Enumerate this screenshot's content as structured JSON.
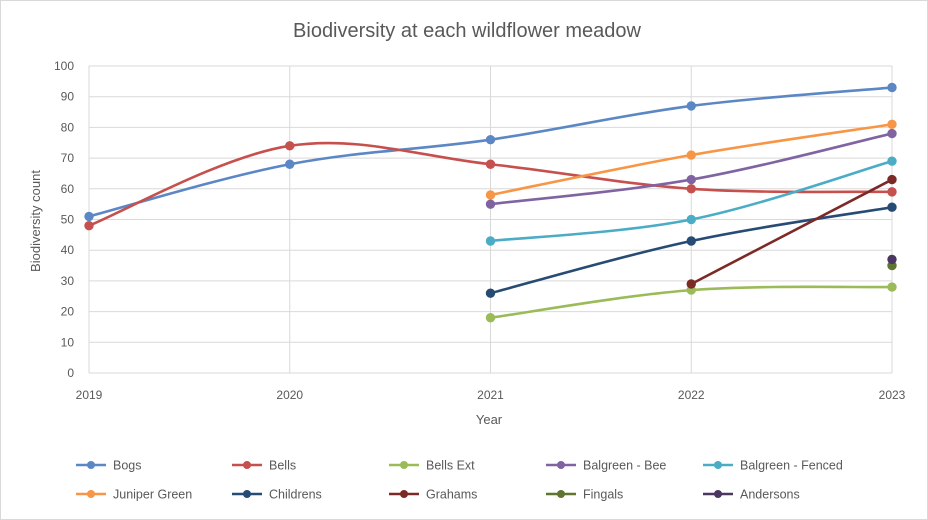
{
  "chart_data": {
    "type": "line",
    "title": "Biodiversity at each wildflower meadow",
    "xlabel": "Year",
    "ylabel": "Biodiversity count",
    "x": [
      2019,
      2020,
      2021,
      2022,
      2023
    ],
    "x_tick_labels": [
      "2019",
      "2020",
      "2021",
      "2022",
      "2023"
    ],
    "ylim": [
      0,
      100
    ],
    "y_ticks": [
      0,
      10,
      20,
      30,
      40,
      50,
      60,
      70,
      80,
      90,
      100
    ],
    "grid": true,
    "smooth": true,
    "legend_position": "bottom",
    "series": [
      {
        "name": "Bogs",
        "color": "#5B87C5",
        "values": [
          51,
          68,
          76,
          87,
          93
        ]
      },
      {
        "name": "Bells",
        "color": "#C5504D",
        "values": [
          48,
          74,
          68,
          60,
          59
        ]
      },
      {
        "name": "Bells Ext",
        "color": "#9BBB59",
        "values": [
          null,
          null,
          18,
          27,
          28
        ]
      },
      {
        "name": "Balgreen - Bee",
        "color": "#8064A2",
        "values": [
          null,
          null,
          55,
          63,
          78
        ]
      },
      {
        "name": "Balgreen - Fenced",
        "color": "#4BACC6",
        "values": [
          null,
          null,
          43,
          50,
          69
        ]
      },
      {
        "name": "Juniper Green",
        "color": "#F79646",
        "values": [
          null,
          null,
          58,
          71,
          81
        ]
      },
      {
        "name": "Childrens",
        "color": "#264B74",
        "values": [
          null,
          null,
          26,
          43,
          54
        ]
      },
      {
        "name": "Grahams",
        "color": "#7B2A26",
        "values": [
          null,
          null,
          null,
          29,
          63
        ]
      },
      {
        "name": "Fingals",
        "color": "#5F7530",
        "values": [
          null,
          null,
          null,
          null,
          35
        ]
      },
      {
        "name": "Andersons",
        "color": "#4A3660",
        "values": [
          null,
          null,
          null,
          null,
          37
        ]
      }
    ]
  }
}
